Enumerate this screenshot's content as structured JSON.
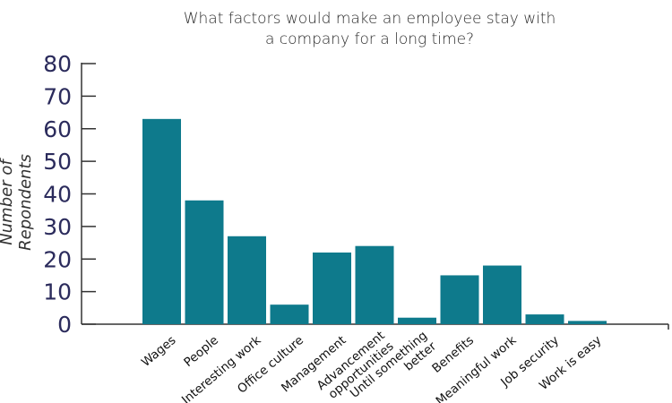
{
  "chart_data": {
    "type": "bar",
    "title_lines": [
      "What factors would make an employee stay with",
      "a company for a long time?"
    ],
    "xlabel": "",
    "ylabel": "Number of Repondents",
    "ylim": [
      0,
      80
    ],
    "yticks": [
      0,
      10,
      20,
      30,
      40,
      50,
      60,
      70,
      80
    ],
    "grid": false,
    "bar_color": "#0e7a8c",
    "categories": [
      [
        "Wages"
      ],
      [
        "People"
      ],
      [
        "Interesting work"
      ],
      [
        "Office culture"
      ],
      [
        "Management"
      ],
      [
        "Advancement",
        "opportunities"
      ],
      [
        "Until something",
        "better"
      ],
      [
        "Benefits"
      ],
      [
        "Meaningful work"
      ],
      [
        "Job security"
      ],
      [
        "Work is easy"
      ]
    ],
    "values": [
      63,
      38,
      27,
      6,
      22,
      24,
      2,
      15,
      18,
      3,
      1
    ]
  }
}
